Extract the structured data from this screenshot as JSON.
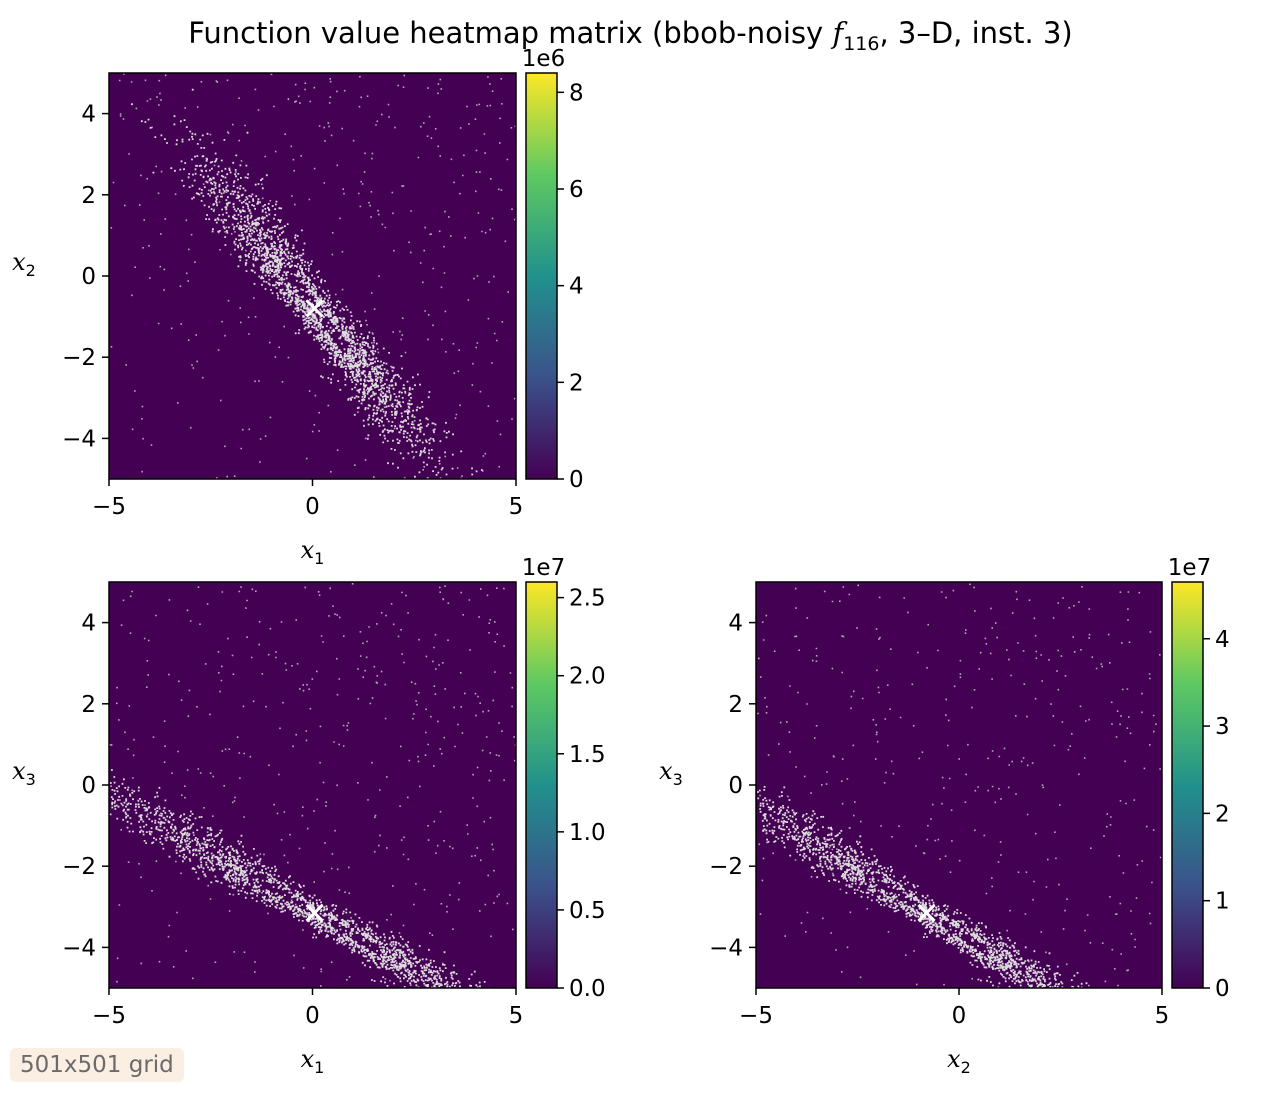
{
  "figure": {
    "title_prefix": "Function value heatmap matrix (bbob-noisy ",
    "title_func_letter": "f",
    "title_func_sub": "116",
    "title_suffix": ", 3–D, inst. 3)",
    "badge": "501x501 grid"
  },
  "colors": {
    "cmap": [
      "#440154",
      "#3b528b",
      "#21918c",
      "#5ec962",
      "#fde725"
    ],
    "background": "#440154",
    "valley": "#dcdcdc",
    "marker": "#ffffff"
  },
  "chart_data": [
    {
      "type": "heatmap",
      "panel": "x1-x2",
      "xlabel_base": "x",
      "xlabel_sub": "1",
      "ylabel_base": "x",
      "ylabel_sub": "2",
      "xlim": [
        -5,
        5
      ],
      "ylim": [
        -5,
        5
      ],
      "xticks": [
        -5,
        0,
        5
      ],
      "xtick_labels": [
        "−5",
        "0",
        "5"
      ],
      "yticks": [
        -4,
        -2,
        0,
        2,
        4
      ],
      "ytick_labels": [
        "−4",
        "−2",
        "0",
        "2",
        "4"
      ],
      "colorbar": {
        "range": [
          0,
          8.4
        ],
        "multiplier": "1e6",
        "ticks": [
          0,
          2,
          4,
          6,
          8
        ],
        "tick_labels": [
          "0",
          "2",
          "4",
          "6",
          "8"
        ]
      },
      "optimum": [
        0.05,
        -0.8
      ],
      "valley_angle_deg": -52,
      "valley_length": 7.2,
      "valley_width": 0.85
    },
    {
      "type": "heatmap",
      "panel": "x1-x3",
      "xlabel_base": "x",
      "xlabel_sub": "1",
      "ylabel_base": "x",
      "ylabel_sub": "3",
      "xlim": [
        -5,
        5
      ],
      "ylim": [
        -5,
        5
      ],
      "xticks": [
        -5,
        0,
        5
      ],
      "xtick_labels": [
        "−5",
        "0",
        "5"
      ],
      "yticks": [
        -4,
        -2,
        0,
        2,
        4
      ],
      "ytick_labels": [
        "−4",
        "−2",
        "0",
        "2",
        "4"
      ],
      "colorbar": {
        "range": [
          0,
          2.6
        ],
        "multiplier": "1e7",
        "ticks": [
          0,
          0.5,
          1.0,
          1.5,
          2.0,
          2.5
        ],
        "tick_labels": [
          "0.0",
          "0.5",
          "1.0",
          "1.5",
          "2.0",
          "2.5"
        ]
      },
      "optimum": [
        0.05,
        -3.15
      ],
      "valley_angle_deg": -30,
      "valley_length": 10.5,
      "valley_width": 0.6
    },
    {
      "type": "heatmap",
      "panel": "x2-x3",
      "xlabel_base": "x",
      "xlabel_sub": "2",
      "ylabel_base": "x",
      "ylabel_sub": "3",
      "xlim": [
        -5,
        5
      ],
      "ylim": [
        -5,
        5
      ],
      "xticks": [
        -5,
        0,
        5
      ],
      "xtick_labels": [
        "−5",
        "0",
        "5"
      ],
      "yticks": [
        -4,
        -2,
        0,
        2,
        4
      ],
      "ytick_labels": [
        "−4",
        "−2",
        "0",
        "2",
        "4"
      ],
      "colorbar": {
        "range": [
          0,
          4.65
        ],
        "multiplier": "1e7",
        "ticks": [
          0,
          1,
          2,
          3,
          4
        ],
        "tick_labels": [
          "0",
          "1",
          "2",
          "3",
          "4"
        ]
      },
      "optimum": [
        -0.8,
        -3.15
      ],
      "valley_angle_deg": -32,
      "valley_length": 10.0,
      "valley_width": 0.6
    }
  ]
}
